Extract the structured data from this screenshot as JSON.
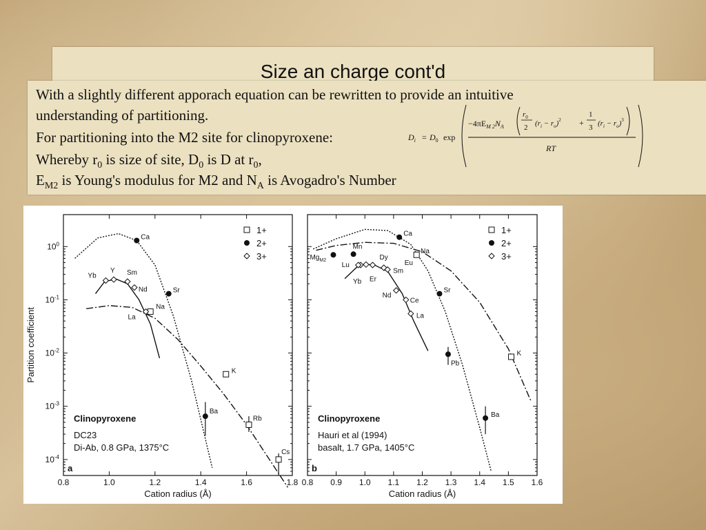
{
  "slide": {
    "title": "Size an charge cont'd",
    "line1": "With a slightly different apporach equation can be rewritten to provide an intuitive",
    "line2": "understanding of partitioning.",
    "line3": "For partitioning into the M2 site for clinopyroxene:",
    "line4": {
      "a": "Whereby r",
      "b": "0",
      "c": " is size of site, D",
      "d": "0",
      "e": " is D at r",
      "f": "0",
      "g": ","
    },
    "line5": {
      "a": "E",
      "b": "M2",
      "c": " is Young's modulus for M2 and N",
      "d": "A",
      "e": " is Avogadro's Number"
    }
  },
  "equation": {
    "lhs": "D",
    "lhs_sub": "i",
    "eq": "=",
    "d0": "D",
    "d0_sub": "0",
    "exp": "exp",
    "num_a": "−4πE",
    "num_a_sub": "M 2",
    "num_b": "N",
    "num_b_sub": "A",
    "r0": "r",
    "r0_sub": "0",
    "two": "2",
    "term1": "(r",
    "term1_sub": "i",
    "term1_b": " − r",
    "term1_b_sub": "o",
    "term1_c": ")",
    "sq": "2",
    "plus": "+",
    "one": "1",
    "three": "3",
    "term2": "(r",
    "term2_sub": "i",
    "term2_b": " − r",
    "term2_b_sub": "o",
    "term2_c": ")",
    "cube": "3",
    "den": "RT"
  },
  "chart_data": [
    {
      "type": "scatter",
      "panel_label": "a",
      "title": "Clinopyroxene",
      "subtitle1": "DC23",
      "subtitle2": "Di-Ab, 0.8 GPa, 1375°C",
      "xlabel": "Cation radius (Å)",
      "ylabel": "Partition coefficient",
      "xlim": [
        0.8,
        1.8
      ],
      "ylim_log": [
        -4.3,
        0.6
      ],
      "yscale": "log",
      "xticks": [
        "0.8",
        "1.0",
        "1.2",
        "1.4",
        "1.6",
        "1.8"
      ],
      "yticks": [
        "10^0",
        "10^-1",
        "10^-2",
        "10^-3",
        "10^-4"
      ],
      "legend": [
        "1+",
        "2+",
        "3+"
      ],
      "legend_position": "top-right",
      "series": [
        {
          "name": "1+",
          "marker": "square",
          "points": [
            {
              "x": 1.18,
              "y": 0.06,
              "label": "Na"
            },
            {
              "x": 1.51,
              "y": 0.004,
              "label": "K"
            },
            {
              "x": 1.61,
              "y": 0.00045,
              "label": "Rb"
            },
            {
              "x": 1.74,
              "y": 0.0001,
              "label": "Cs"
            }
          ]
        },
        {
          "name": "2+",
          "marker": "circle",
          "points": [
            {
              "x": 1.12,
              "y": 1.3,
              "label": "Ca"
            },
            {
              "x": 1.26,
              "y": 0.13,
              "label": "Sr"
            },
            {
              "x": 1.42,
              "y": 0.00065,
              "label": "Ba"
            }
          ]
        },
        {
          "name": "3+",
          "marker": "diamond",
          "points": [
            {
              "x": 0.985,
              "y": 0.23,
              "label": "Yb"
            },
            {
              "x": 1.02,
              "y": 0.24,
              "label": "Y"
            },
            {
              "x": 1.08,
              "y": 0.22,
              "label": "Sm"
            },
            {
              "x": 1.11,
              "y": 0.17,
              "label": "Nd"
            },
            {
              "x": 1.16,
              "y": 0.06,
              "label": "La"
            }
          ]
        }
      ]
    },
    {
      "type": "scatter",
      "panel_label": "b",
      "title": "Clinopyroxene",
      "subtitle1": "Hauri et al (1994)",
      "subtitle2": "basalt, 1.7 GPa, 1405°C",
      "xlabel": "Cation radius (Å)",
      "xlim": [
        0.8,
        1.6
      ],
      "yscale": "log",
      "xticks": [
        "0.8",
        "0.9",
        "1.0",
        "1.1",
        "1.2",
        "1.3",
        "1.4",
        "1.5",
        "1.6"
      ],
      "legend": [
        "1+",
        "2+",
        "3+"
      ],
      "legend_position": "top-right",
      "series": [
        {
          "name": "1+",
          "marker": "square",
          "points": [
            {
              "x": 1.18,
              "y": 0.7,
              "label": "Na"
            },
            {
              "x": 1.51,
              "y": 0.0085,
              "label": "K"
            }
          ]
        },
        {
          "name": "2+",
          "marker": "circle",
          "points": [
            {
              "x": 0.89,
              "y": 0.7,
              "label": "Mg",
              "label_sub": "M2"
            },
            {
              "x": 0.96,
              "y": 0.72,
              "label": "Mn"
            },
            {
              "x": 1.12,
              "y": 1.5,
              "label": "Ca"
            },
            {
              "x": 1.26,
              "y": 0.13,
              "label": "Sr"
            },
            {
              "x": 1.29,
              "y": 0.0095,
              "label": "Pb"
            },
            {
              "x": 1.42,
              "y": 0.0006,
              "label": "Ba"
            }
          ]
        },
        {
          "name": "3+",
          "marker": "diamond",
          "points": [
            {
              "x": 0.985,
              "y": 0.45,
              "label": "Yb"
            },
            {
              "x": 0.977,
              "y": 0.45,
              "label": "Lu"
            },
            {
              "x": 1.004,
              "y": 0.46,
              "label": "Er"
            },
            {
              "x": 1.027,
              "y": 0.45,
              "label": "Dy"
            },
            {
              "x": 1.066,
              "y": 0.4,
              "label": "Eu"
            },
            {
              "x": 1.079,
              "y": 0.37,
              "label": "Sm"
            },
            {
              "x": 1.109,
              "y": 0.15,
              "label": "Nd"
            },
            {
              "x": 1.143,
              "y": 0.1,
              "label": "Ce"
            },
            {
              "x": 1.16,
              "y": 0.055,
              "label": "La"
            }
          ]
        }
      ]
    }
  ]
}
